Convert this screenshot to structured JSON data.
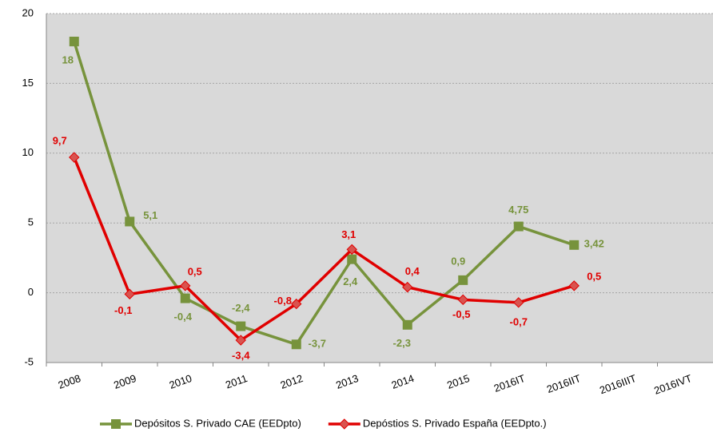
{
  "chart_data": {
    "type": "line",
    "categories": [
      "2008",
      "2009",
      "2010",
      "2011",
      "2012",
      "2013",
      "2014",
      "2015",
      "2016IT",
      "2016IIT",
      "2016IIIT",
      "2016IVT"
    ],
    "series": [
      {
        "name": "Depósitos S. Privado CAE (EEDpto)",
        "color": "#77933c",
        "marker": "square",
        "values": [
          18,
          5.1,
          -0.4,
          -2.4,
          -3.7,
          2.4,
          -2.3,
          0.9,
          4.75,
          3.42,
          null,
          null
        ],
        "value_labels": [
          "18",
          "5,1",
          "-0,4",
          "-2,4",
          "-3,7",
          "2,4",
          "-2,3",
          "0,9",
          "4,75",
          "3,42",
          null,
          null
        ]
      },
      {
        "name": "Depóstios S. Privado España (EEDpto.)",
        "color": "#e00000",
        "marker": "diamond",
        "values": [
          9.7,
          -0.1,
          0.5,
          -3.4,
          -0.8,
          3.1,
          0.4,
          -0.5,
          -0.7,
          0.5,
          null,
          null
        ],
        "value_labels": [
          "9,7",
          "-0,1",
          "0,5",
          "-3,4",
          "-0,8",
          "3,1",
          "0,4",
          "-0,5",
          "-0,7",
          "0,5",
          null,
          null
        ]
      }
    ],
    "ylim": [
      -5,
      20
    ],
    "yticks": [
      -5,
      0,
      5,
      10,
      15,
      20
    ],
    "grid": true,
    "legend": "bottom"
  }
}
